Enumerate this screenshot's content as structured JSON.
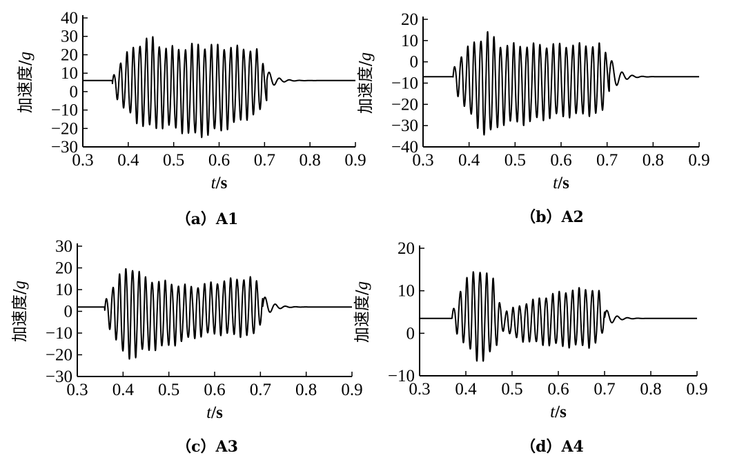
{
  "chart_data": [
    {
      "type": "line",
      "caption": "（a）A1",
      "xlabel_var": "t",
      "xlabel_unit": "/s",
      "ylabel_text": "加速度/",
      "ylabel_unit": "g",
      "xlim": [
        0.3,
        0.9
      ],
      "ylim": [
        -30,
        40
      ],
      "xticks": [
        "0.3",
        "0.4",
        "0.5",
        "0.6",
        "0.7",
        "0.8",
        "0.9"
      ],
      "yticks": [
        "−30",
        "−20",
        "−10",
        "0",
        "10",
        "20",
        "30",
        "40"
      ],
      "yvals": [
        -30,
        -20,
        -10,
        0,
        10,
        20,
        30,
        40
      ],
      "baseline": 6,
      "onset": 0.365,
      "end": 0.705,
      "env_x": [
        0.365,
        0.39,
        0.42,
        0.45,
        0.48,
        0.52,
        0.55,
        0.6,
        0.65,
        0.69,
        0.7
      ],
      "env_max": [
        8,
        20,
        27,
        31,
        25,
        25,
        27,
        26,
        25,
        23,
        12
      ],
      "env_min": [
        0,
        -10,
        -18,
        -22,
        -20,
        -23,
        -26,
        -23,
        -17,
        -12,
        -5
      ]
    },
    {
      "type": "line",
      "caption": "（b）A2",
      "xlabel_var": "t",
      "xlabel_unit": "/s",
      "ylabel_text": "加速度/",
      "ylabel_unit": "g",
      "xlim": [
        0.3,
        0.9
      ],
      "ylim": [
        -40,
        20
      ],
      "xticks": [
        "0.3",
        "0.4",
        "0.5",
        "0.6",
        "0.7",
        "0.8",
        "0.9"
      ],
      "yticks": [
        "−40",
        "−30",
        "−20",
        "−10",
        "0",
        "10",
        "20"
      ],
      "yvals": [
        -40,
        -30,
        -20,
        -10,
        0,
        10,
        20
      ],
      "baseline": -7,
      "onset": 0.365,
      "end": 0.705,
      "env_x": [
        0.365,
        0.39,
        0.42,
        0.44,
        0.47,
        0.52,
        0.58,
        0.65,
        0.69,
        0.7
      ],
      "env_max": [
        -3,
        6,
        12,
        15,
        9,
        9,
        9,
        9,
        9,
        3
      ],
      "env_min": [
        -12,
        -22,
        -32,
        -37,
        -30,
        -30,
        -27,
        -26,
        -25,
        -14
      ]
    },
    {
      "type": "line",
      "caption": "（c）A3",
      "xlabel_var": "t",
      "xlabel_unit": "/s",
      "ylabel_text": "加速度/",
      "ylabel_unit": "g",
      "xlim": [
        0.3,
        0.9
      ],
      "ylim": [
        -30,
        30
      ],
      "xticks": [
        "0.3",
        "0.4",
        "0.5",
        "0.6",
        "0.7",
        "0.8",
        "0.9"
      ],
      "yticks": [
        "−30",
        "−20",
        "−10",
        "0",
        "10",
        "20",
        "30"
      ],
      "yvals": [
        -30,
        -20,
        -10,
        0,
        10,
        20,
        30
      ],
      "baseline": 2,
      "onset": 0.36,
      "end": 0.705,
      "env_x": [
        0.36,
        0.38,
        0.4,
        0.42,
        0.45,
        0.5,
        0.55,
        0.6,
        0.65,
        0.69,
        0.7
      ],
      "env_max": [
        5,
        13,
        20,
        22,
        16,
        14,
        12,
        14,
        16,
        16,
        8
      ],
      "env_min": [
        -4,
        -12,
        -21,
        -23,
        -19,
        -17,
        -13,
        -11,
        -12,
        -12,
        -6
      ]
    },
    {
      "type": "line",
      "caption": "（d）A4",
      "xlabel_var": "t",
      "xlabel_unit": "/s",
      "ylabel_text": "加速度/",
      "ylabel_unit": "g",
      "xlim": [
        0.3,
        0.9
      ],
      "ylim": [
        -10,
        20
      ],
      "xticks": [
        "0.3",
        "0.4",
        "0.5",
        "0.6",
        "0.7",
        "0.8",
        "0.9"
      ],
      "yticks": [
        "−10",
        "0",
        "10",
        "20"
      ],
      "yvals": [
        -10,
        0,
        10,
        20
      ],
      "baseline": 3.5,
      "onset": 0.37,
      "end": 0.7,
      "env_x": [
        0.37,
        0.39,
        0.41,
        0.43,
        0.46,
        0.48,
        0.52,
        0.57,
        0.62,
        0.67,
        0.69,
        0.7
      ],
      "env_max": [
        5,
        11,
        14.5,
        16,
        13,
        5,
        7,
        9,
        10.5,
        11,
        10,
        6
      ],
      "env_min": [
        2,
        -2,
        -5,
        -7.5,
        -5,
        0.5,
        -2,
        -3,
        -3.5,
        -3.5,
        -2,
        1
      ]
    }
  ]
}
